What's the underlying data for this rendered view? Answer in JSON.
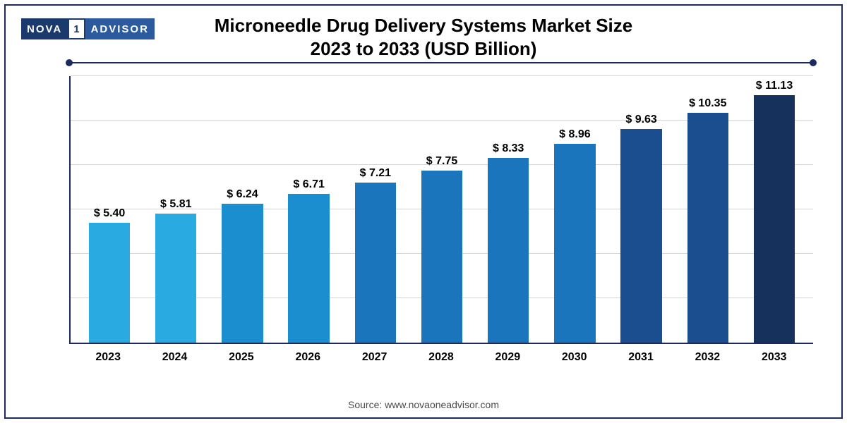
{
  "logo": {
    "left": "NOVA",
    "mid": "1",
    "right": "ADVISOR"
  },
  "title_line1": "Microneedle Drug Delivery Systems Market Size",
  "title_line2": "2023 to 2033 (USD Billion)",
  "source": "Source: www.novaoneadvisor.com",
  "chart": {
    "type": "bar",
    "ymax": 12.0,
    "grid_steps": 6,
    "grid_color": "#d5d5d5",
    "axis_color": "#1a2a5e",
    "background_color": "#ffffff",
    "bar_width_pct": 62,
    "label_fontsize": 16,
    "title_fontsize": 26,
    "categories": [
      "2023",
      "2024",
      "2025",
      "2026",
      "2027",
      "2028",
      "2029",
      "2030",
      "2031",
      "2032",
      "2033"
    ],
    "values": [
      5.4,
      5.81,
      6.24,
      6.71,
      7.21,
      7.75,
      8.33,
      8.96,
      9.63,
      10.35,
      11.13
    ],
    "value_labels": [
      "$ 5.40",
      "$ 5.81",
      "$ 6.24",
      "$ 6.71",
      "$ 7.21",
      "$ 7.75",
      "$ 8.33",
      "$ 8.96",
      "$ 9.63",
      "$ 10.35",
      "$ 11.13"
    ],
    "bar_colors": [
      "#29abe2",
      "#29abe2",
      "#1b8ecf",
      "#1b8ecf",
      "#1b75bc",
      "#1b75bc",
      "#1b75bc",
      "#1b75bc",
      "#1a4e8f",
      "#1a4e8f",
      "#16325c"
    ]
  }
}
